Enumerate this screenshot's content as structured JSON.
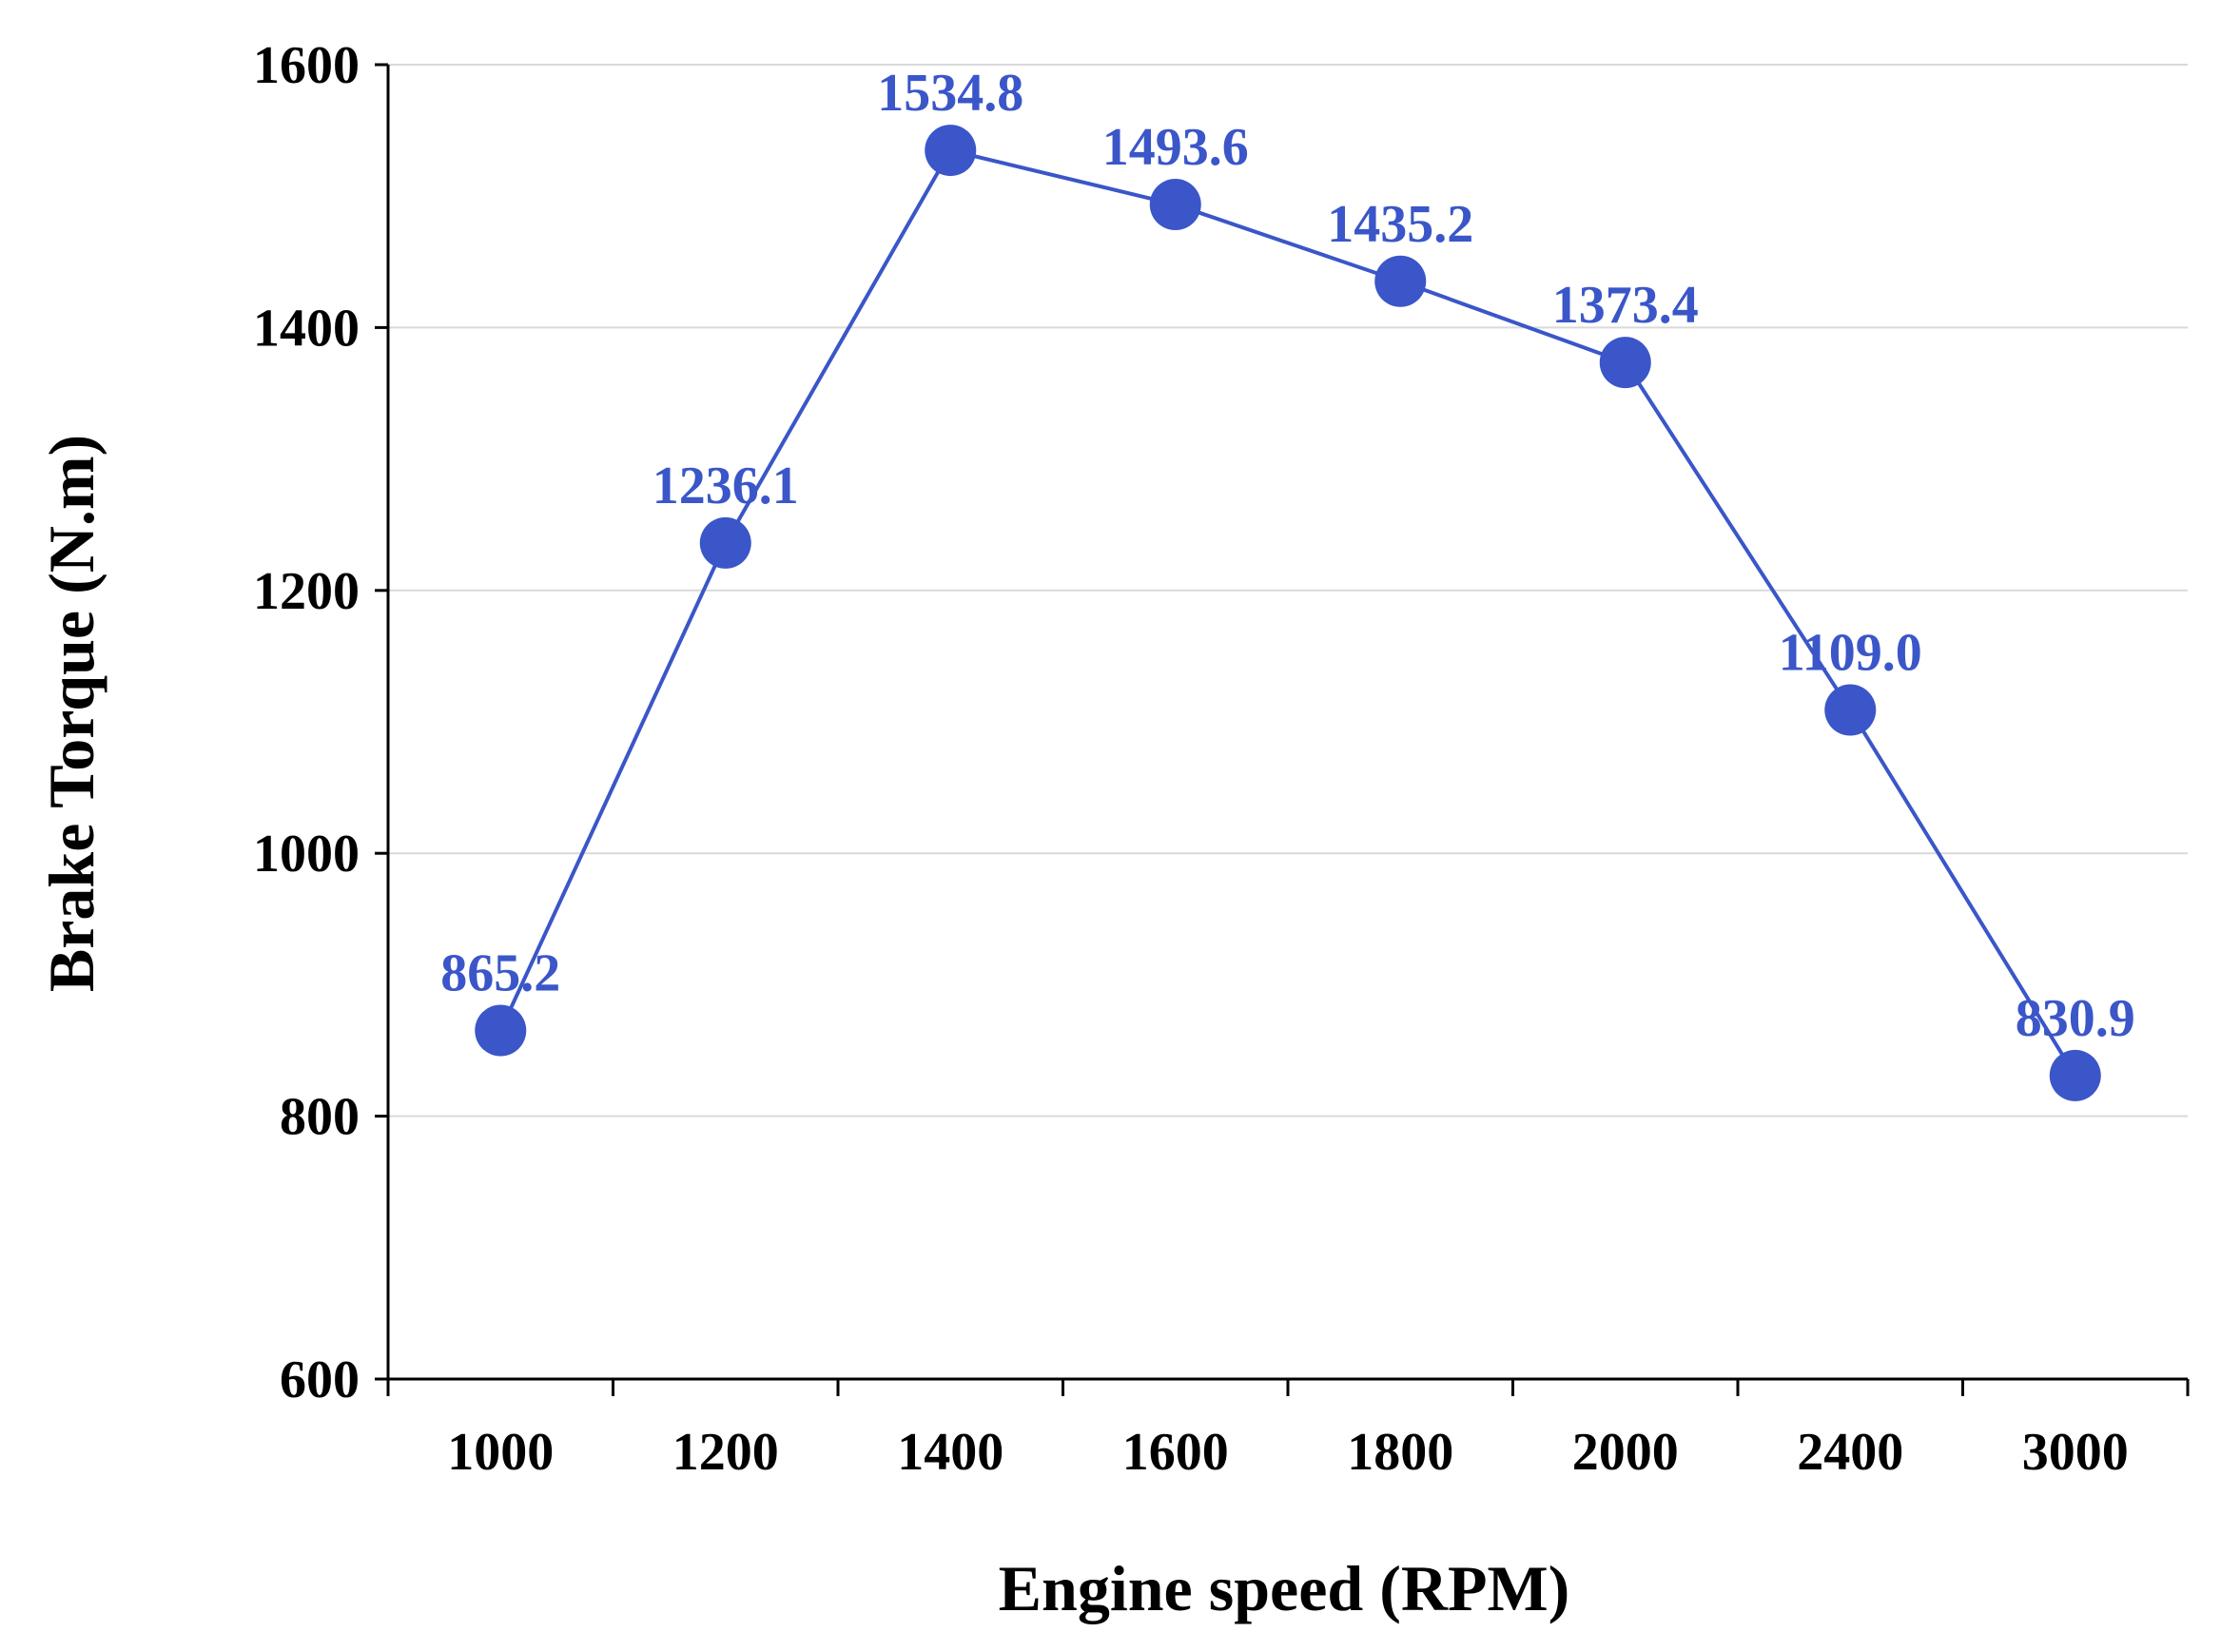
{
  "chart_data": {
    "type": "line",
    "title": "",
    "xlabel": "Engine speed (RPM)",
    "ylabel": "Brake Torque (N.m)",
    "categories": [
      "1000",
      "1200",
      "1400",
      "1600",
      "1800",
      "2000",
      "2400",
      "3000"
    ],
    "series": [
      {
        "name": "Brake Torque",
        "values": [
          865.2,
          1236.1,
          1534.8,
          1493.6,
          1435.2,
          1373.4,
          1109.0,
          830.9
        ],
        "labels": [
          "865.2",
          "1236.1",
          "1534.8",
          "1493.6",
          "1435.2",
          "1373.4",
          "1109.0",
          "830.9"
        ]
      }
    ],
    "ylim": [
      600,
      1600
    ],
    "yticks": [
      "600",
      "800",
      "1000",
      "1200",
      "1400",
      "1600"
    ],
    "grid": true,
    "legend": "none",
    "colors": {
      "series": "#3a56c8",
      "grid": "#d9d9d9",
      "axis": "#000000"
    }
  }
}
